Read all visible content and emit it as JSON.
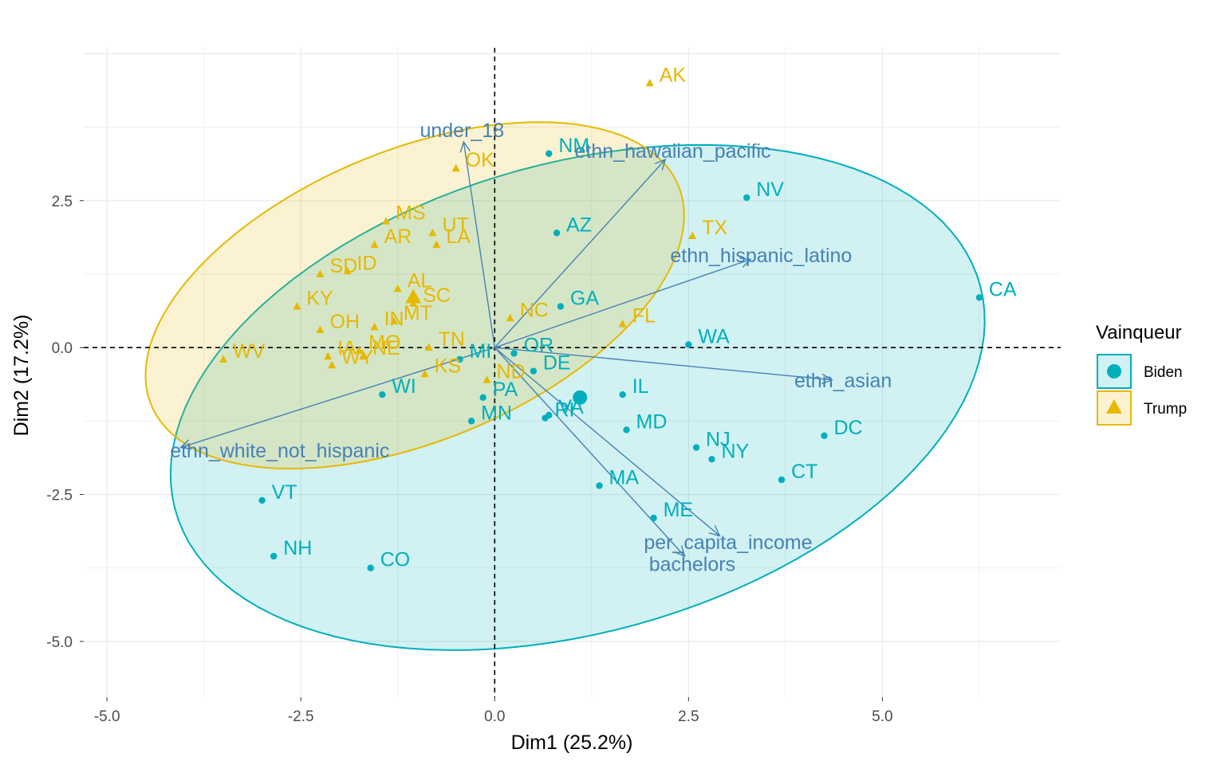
{
  "chart_data": {
    "type": "scatter",
    "subtype": "pca-biplot",
    "title": "",
    "xlabel": "Dim1 (25.2%)",
    "ylabel": "Dim2 (17.2%)",
    "xlim": [
      -5.3,
      7.3
    ],
    "ylim": [
      -5.95,
      5.1
    ],
    "xticks": [
      -5.0,
      -2.5,
      0.0,
      2.5,
      5.0
    ],
    "xtick_labels": [
      "-5.0",
      "-2.5",
      "0.0",
      "2.5",
      "5.0"
    ],
    "yticks": [
      -5.0,
      -2.5,
      0.0,
      2.5
    ],
    "ytick_labels": [
      "-5.0",
      "-2.5",
      "0.0",
      "2.5"
    ],
    "grid": true,
    "reference_lines": {
      "x": 0,
      "y": 0,
      "style": "dashed"
    },
    "legend": {
      "title": "Vainqueur",
      "position": "right",
      "entries": [
        {
          "name": "Biden",
          "color": "#00AFBB",
          "marker": "circle"
        },
        {
          "name": "Trump",
          "color": "#E7B800",
          "marker": "triangle"
        }
      ]
    },
    "series": [
      {
        "name": "Biden",
        "color": "#00AFBB",
        "marker": "circle",
        "centroid": {
          "x": 1.1,
          "y": -0.85
        },
        "points": [
          {
            "label": "CA",
            "x": 6.25,
            "y": 0.85
          },
          {
            "label": "NV",
            "x": 3.25,
            "y": 2.55
          },
          {
            "label": "NM",
            "x": 0.7,
            "y": 3.3
          },
          {
            "label": "AZ",
            "x": 0.8,
            "y": 1.95
          },
          {
            "label": "GA",
            "x": 0.85,
            "y": 0.7
          },
          {
            "label": "WA",
            "x": 2.5,
            "y": 0.05
          },
          {
            "label": "OR",
            "x": 0.25,
            "y": -0.1
          },
          {
            "label": "DE",
            "x": 0.5,
            "y": -0.4
          },
          {
            "label": "IL",
            "x": 1.65,
            "y": -0.8
          },
          {
            "label": "MI",
            "x": -0.45,
            "y": -0.2
          },
          {
            "label": "WI",
            "x": -1.45,
            "y": -0.8
          },
          {
            "label": "MN",
            "x": -0.3,
            "y": -1.25
          },
          {
            "label": "PA",
            "x": -0.15,
            "y": -0.85
          },
          {
            "label": "RI",
            "x": 0.65,
            "y": -1.2
          },
          {
            "label": "VA",
            "x": 0.7,
            "y": -1.15
          },
          {
            "label": "MD",
            "x": 1.7,
            "y": -1.4
          },
          {
            "label": "NJ",
            "x": 2.6,
            "y": -1.7
          },
          {
            "label": "NY",
            "x": 2.8,
            "y": -1.9
          },
          {
            "label": "DC",
            "x": 4.25,
            "y": -1.5
          },
          {
            "label": "CT",
            "x": 3.7,
            "y": -2.25
          },
          {
            "label": "MA",
            "x": 1.35,
            "y": -2.35
          },
          {
            "label": "ME",
            "x": 2.05,
            "y": -2.9
          },
          {
            "label": "VT",
            "x": -3.0,
            "y": -2.6
          },
          {
            "label": "NH",
            "x": -2.85,
            "y": -3.55
          },
          {
            "label": "CO",
            "x": -1.6,
            "y": -3.75
          }
        ]
      },
      {
        "name": "Trump",
        "color": "#E7B800",
        "marker": "triangle",
        "centroid": {
          "x": -1.05,
          "y": 0.85
        },
        "points": [
          {
            "label": "AK",
            "x": 2.0,
            "y": 4.5
          },
          {
            "label": "TX",
            "x": 2.55,
            "y": 1.9
          },
          {
            "label": "OK",
            "x": -0.5,
            "y": 3.05
          },
          {
            "label": "MS",
            "x": -1.4,
            "y": 2.15
          },
          {
            "label": "UT",
            "x": -0.8,
            "y": 1.95
          },
          {
            "label": "AR",
            "x": -1.55,
            "y": 1.75
          },
          {
            "label": "LA",
            "x": -0.75,
            "y": 1.75
          },
          {
            "label": "SD",
            "x": -2.25,
            "y": 1.25
          },
          {
            "label": "ID",
            "x": -1.9,
            "y": 1.3
          },
          {
            "label": "KY",
            "x": -2.55,
            "y": 0.7
          },
          {
            "label": "AL",
            "x": -1.25,
            "y": 1.0
          },
          {
            "label": "SC",
            "x": -1.05,
            "y": 0.75
          },
          {
            "label": "IN",
            "x": -1.55,
            "y": 0.35
          },
          {
            "label": "MT",
            "x": -1.3,
            "y": 0.45
          },
          {
            "label": "OH",
            "x": -2.25,
            "y": 0.3
          },
          {
            "label": "NC",
            "x": 0.2,
            "y": 0.5
          },
          {
            "label": "FL",
            "x": 1.65,
            "y": 0.4
          },
          {
            "label": "TN",
            "x": -0.85,
            "y": 0.0
          },
          {
            "label": "WV",
            "x": -3.5,
            "y": -0.2
          },
          {
            "label": "WY",
            "x": -2.1,
            "y": -0.3
          },
          {
            "label": "MO",
            "x": -1.75,
            "y": -0.05
          },
          {
            "label": "IA",
            "x": -2.15,
            "y": -0.15
          },
          {
            "label": "NE",
            "x": -1.7,
            "y": -0.15
          },
          {
            "label": "KS",
            "x": -0.9,
            "y": -0.45
          },
          {
            "label": "ND",
            "x": -0.1,
            "y": -0.55
          }
        ]
      }
    ],
    "variables": [
      {
        "name": "under_18",
        "x": -0.4,
        "y": 3.5
      },
      {
        "name": "ethn_hawaiian_pacific",
        "x": 2.2,
        "y": 3.2
      },
      {
        "name": "ethn_hispanic_latino",
        "x": 3.3,
        "y": 1.5
      },
      {
        "name": "ethn_asian",
        "x": 4.35,
        "y": -0.55
      },
      {
        "name": "ethn_white_not_hispanic",
        "x": -4.05,
        "y": -1.7
      },
      {
        "name": "per_capita_income",
        "x": 2.9,
        "y": -3.2
      },
      {
        "name": "bachelors",
        "x": 2.45,
        "y": -3.55
      }
    ]
  }
}
